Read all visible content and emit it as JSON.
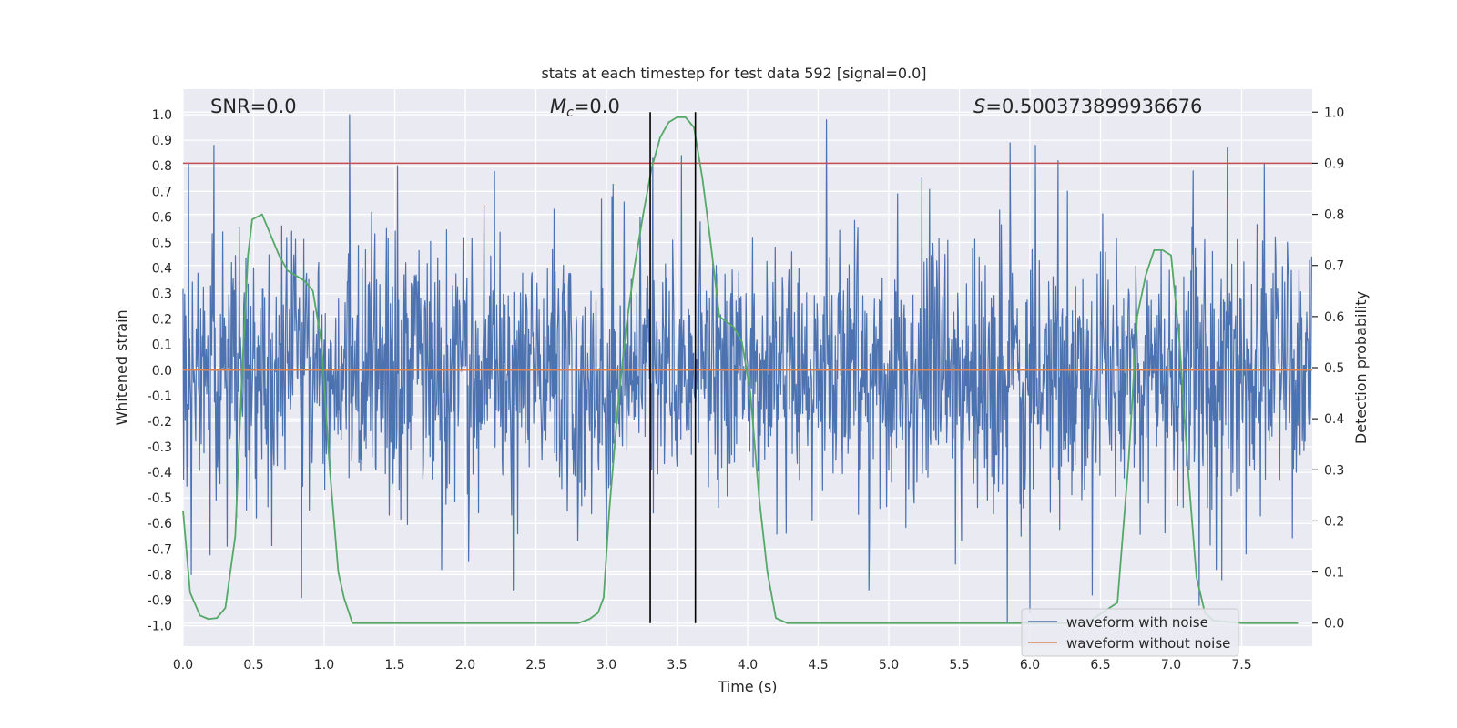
{
  "chart_data": {
    "type": "line",
    "title": "stats at each timestep for test data 592 [signal=0.0]",
    "xlabel": "Time (s)",
    "ylabel": "Whitened strain",
    "y2label": "Detection probability",
    "xlim": [
      0.0,
      8.0
    ],
    "ylim": [
      -1.08,
      1.1
    ],
    "y2lim": [
      -0.045,
      1.045
    ],
    "xticks": [
      0.0,
      0.5,
      1.0,
      1.5,
      2.0,
      2.5,
      3.0,
      3.5,
      4.0,
      4.5,
      5.0,
      5.5,
      6.0,
      6.5,
      7.0,
      7.5
    ],
    "xtick_labels": [
      "0.0",
      "0.5",
      "1.0",
      "1.5",
      "2.0",
      "2.5",
      "3.0",
      "3.5",
      "4.0",
      "4.5",
      "5.0",
      "5.5",
      "6.0",
      "6.5",
      "7.0",
      "7.5"
    ],
    "yticks": [
      1.0,
      0.9,
      0.8,
      0.7,
      0.6,
      0.5,
      0.4,
      0.3,
      0.2,
      0.1,
      0.0,
      -0.1,
      -0.2,
      -0.3,
      -0.4,
      -0.5,
      -0.6,
      -0.7,
      -0.8,
      -0.9,
      -1.0
    ],
    "ytick_labels": [
      "1.0",
      "0.9",
      "0.8",
      "0.7",
      "0.6",
      "0.5",
      "0.4",
      "0.3",
      "0.2",
      "0.1",
      "0.0",
      "-0.1",
      "-0.2",
      "-0.3",
      "-0.4",
      "-0.5",
      "-0.6",
      "-0.7",
      "-0.8",
      "-0.9",
      "-1.0"
    ],
    "y2ticks": [
      1.0,
      0.9,
      0.8,
      0.7,
      0.6,
      0.5,
      0.4,
      0.3,
      0.2,
      0.1,
      0.0
    ],
    "y2tick_labels": [
      "1.0",
      "0.9",
      "0.8",
      "0.7",
      "0.6",
      "0.5",
      "0.4",
      "0.3",
      "0.2",
      "0.1",
      "0.0"
    ],
    "annotations": {
      "snr": "SNR=0.0",
      "mc_symbol": "M",
      "mc_sub": "c",
      "mc_value": "=0.0",
      "s_symbol": "S",
      "s_value": "=0.500373899936676"
    },
    "threshold": {
      "value": 0.9,
      "axis": "right",
      "color": "#c44e52"
    },
    "vlines": [
      3.31,
      3.63
    ],
    "vline_range": [
      0.0,
      1.0
    ],
    "series": [
      {
        "name": "waveform with noise",
        "color": "#4c72b0",
        "axis": "left",
        "kind": "noise",
        "duration": 8.0,
        "samples": 2048,
        "sigma": 0.26,
        "peaks": [
          {
            "t": 0.04,
            "v": 0.81
          },
          {
            "t": 0.22,
            "v": 0.88
          },
          {
            "t": 1.18,
            "v": 1.0
          },
          {
            "t": 1.52,
            "v": 0.8
          },
          {
            "t": 3.33,
            "v": 0.83
          },
          {
            "t": 3.53,
            "v": 0.84
          },
          {
            "t": 4.56,
            "v": 0.98
          },
          {
            "t": 5.86,
            "v": 0.89
          },
          {
            "t": 6.04,
            "v": 0.88
          },
          {
            "t": 6.2,
            "v": 0.82
          },
          {
            "t": 7.4,
            "v": 0.87
          },
          {
            "t": 7.66,
            "v": 0.81
          },
          {
            "t": 0.06,
            "v": -0.8
          },
          {
            "t": 0.84,
            "v": -0.89
          },
          {
            "t": 2.34,
            "v": -0.86
          },
          {
            "t": 4.86,
            "v": -0.86
          },
          {
            "t": 5.84,
            "v": -0.99
          },
          {
            "t": 6.0,
            "v": -0.95
          },
          {
            "t": 6.44,
            "v": -0.88
          },
          {
            "t": 7.2,
            "v": -0.92
          },
          {
            "t": 7.36,
            "v": -0.82
          }
        ]
      },
      {
        "name": "waveform without noise",
        "color": "#dd8452",
        "axis": "left",
        "kind": "flat",
        "value": 0.0
      },
      {
        "name": "detection probability",
        "color": "#55a868",
        "axis": "right",
        "kind": "line",
        "x": [
          0.0,
          0.05,
          0.12,
          0.18,
          0.24,
          0.3,
          0.37,
          0.42,
          0.46,
          0.49,
          0.56,
          0.62,
          0.68,
          0.74,
          0.8,
          0.86,
          0.92,
          0.98,
          1.04,
          1.1,
          1.14,
          1.2,
          1.3,
          1.5,
          2.0,
          2.5,
          2.8,
          2.88,
          2.94,
          2.98,
          3.02,
          3.08,
          3.14,
          3.2,
          3.26,
          3.32,
          3.38,
          3.44,
          3.5,
          3.56,
          3.62,
          3.68,
          3.74,
          3.8,
          3.9,
          3.96,
          4.02,
          4.08,
          4.14,
          4.2,
          4.28,
          4.5,
          5.0,
          5.5,
          6.0,
          6.4,
          6.62,
          6.7,
          6.76,
          6.82,
          6.88,
          6.94,
          7.0,
          7.06,
          7.12,
          7.18,
          7.24,
          7.3,
          7.5,
          7.9
        ],
        "y": [
          0.22,
          0.06,
          0.015,
          0.008,
          0.01,
          0.03,
          0.17,
          0.5,
          0.72,
          0.79,
          0.8,
          0.76,
          0.72,
          0.69,
          0.68,
          0.67,
          0.65,
          0.55,
          0.3,
          0.1,
          0.05,
          0.0,
          0.0,
          0.0,
          0.0,
          0.0,
          0.0,
          0.008,
          0.02,
          0.05,
          0.22,
          0.42,
          0.58,
          0.7,
          0.8,
          0.89,
          0.95,
          0.98,
          0.99,
          0.99,
          0.97,
          0.87,
          0.74,
          0.6,
          0.58,
          0.55,
          0.45,
          0.25,
          0.1,
          0.01,
          0.0,
          0.0,
          0.0,
          0.0,
          0.0,
          0.0,
          0.04,
          0.32,
          0.6,
          0.68,
          0.73,
          0.73,
          0.72,
          0.55,
          0.3,
          0.09,
          0.02,
          0.005,
          0.0,
          0.0
        ]
      }
    ],
    "legend": {
      "placement": "lower-right",
      "entries": [
        {
          "label": "waveform with noise",
          "color": "#4c72b0"
        },
        {
          "label": "waveform without noise",
          "color": "#dd8452"
        }
      ]
    }
  }
}
